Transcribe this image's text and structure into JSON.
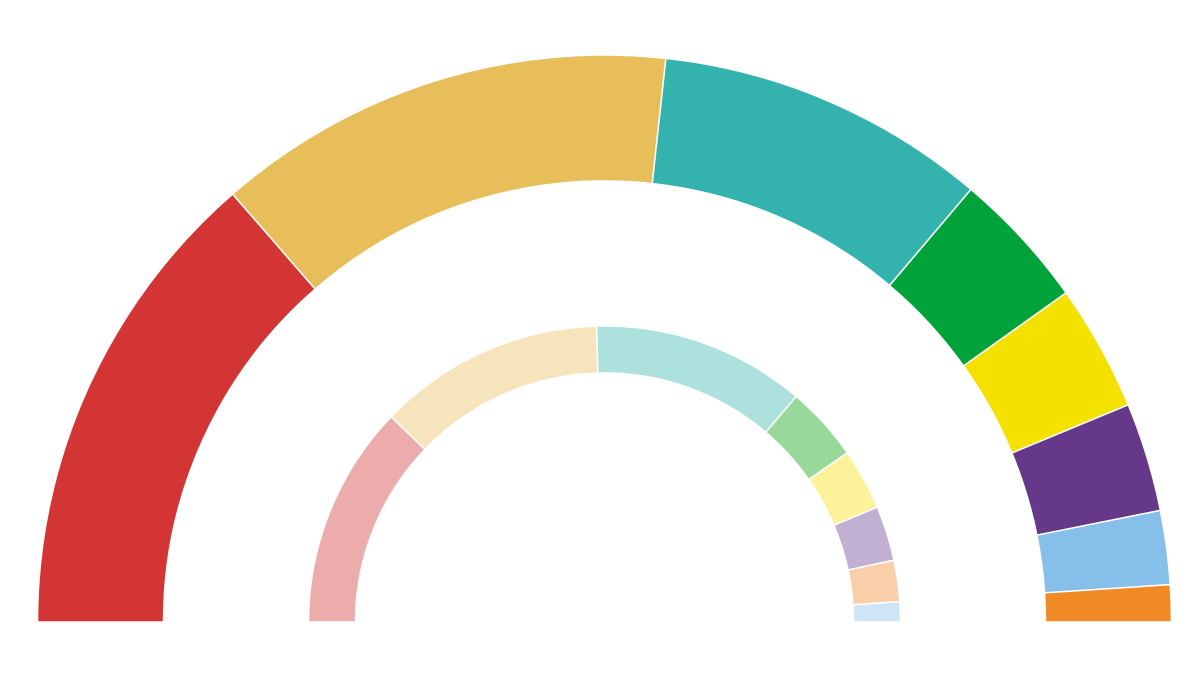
{
  "chart_data": [
    {
      "type": "donut",
      "values": [
        27.2,
        26.2,
        18.9,
        7.9,
        7.2,
        6.2,
        4.2,
        2.1
      ],
      "colors": [
        "#d33434",
        "#e7be59",
        "#34b3ae",
        "#00a33a",
        "#f5e100",
        "#66388a",
        "#86bfe9",
        "#f08a25"
      ]
    },
    {
      "type": "donut",
      "values": [
        24.4,
        24.8,
        23.3,
        8.2,
        6.7,
        6.0,
        4.5,
        2.2
      ],
      "colors": [
        "#edacac",
        "#f5e4bc",
        "#ade1dd",
        "#99d89b",
        "#fbf299",
        "#c1b0d2",
        "#f8cfa9",
        "#cfe5f6"
      ]
    }
  ]
}
